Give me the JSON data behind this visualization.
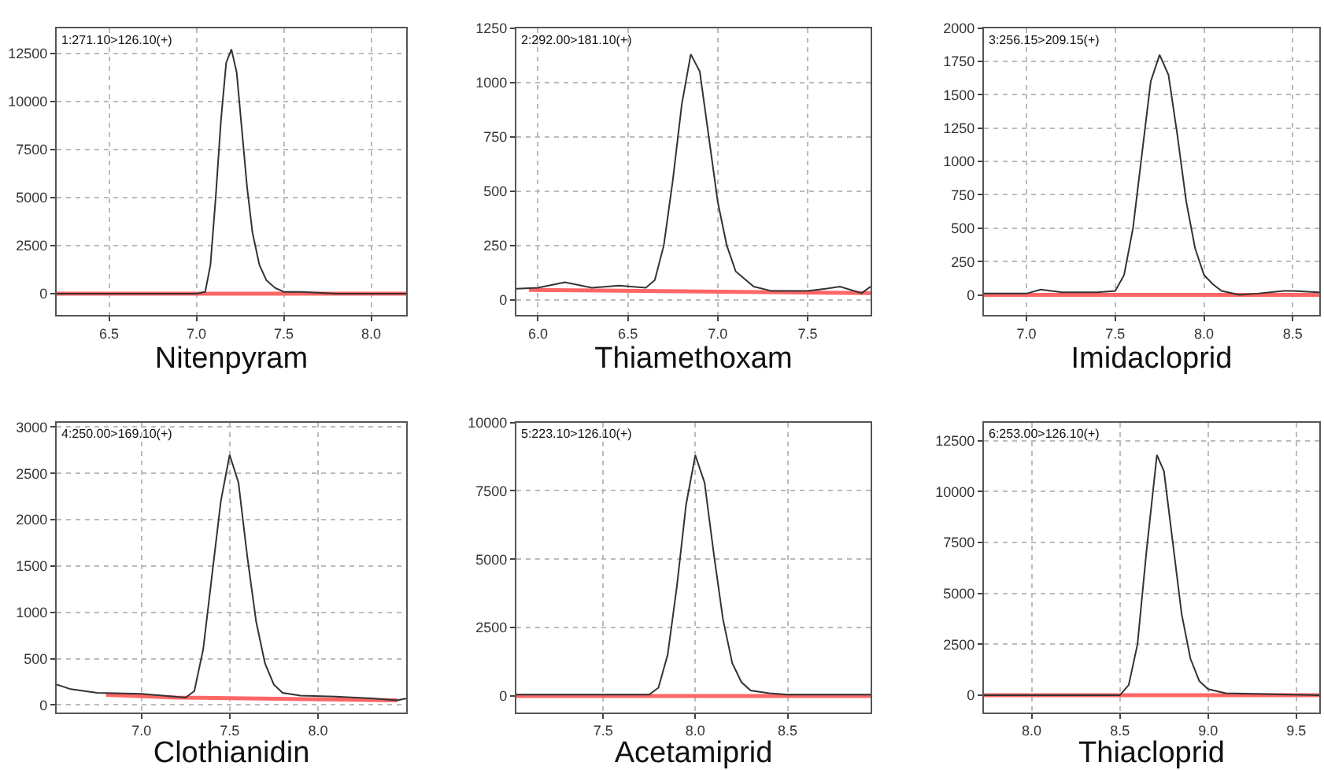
{
  "chart_data": [
    {
      "type": "line",
      "xlabel": "Nitenpyram",
      "annotations": [
        "1:271.10>126.10(+)"
      ],
      "xlim": [
        6.2,
        8.2
      ],
      "xticks": [
        6.5,
        {
          "value": 7,
          "label": "7.0"
        },
        7.5,
        {
          "value": 8,
          "label": "8.0"
        }
      ],
      "ylim": [
        -1100,
        13800
      ],
      "yticks": [
        0,
        2500,
        5000,
        7500,
        10000,
        12500
      ],
      "grid": true,
      "marker": "none",
      "line_style": "solid",
      "series": [
        {
          "color": "#ff6666",
          "x": [
            6.2,
            8.2
          ],
          "values": [
            0,
            0
          ]
        },
        {
          "color": "#333333",
          "x": [
            6.2,
            6.6,
            7.0,
            7.05,
            7.08,
            7.11,
            7.14,
            7.17,
            7.2,
            7.23,
            7.26,
            7.29,
            7.32,
            7.36,
            7.4,
            7.45,
            7.5,
            7.6,
            7.8,
            8.0,
            8.2
          ],
          "values": [
            0,
            0,
            0,
            100,
            1500,
            5000,
            9000,
            12000,
            12700,
            11500,
            8500,
            5500,
            3200,
            1500,
            700,
            300,
            100,
            100,
            0,
            0,
            0
          ]
        }
      ]
    },
    {
      "type": "line",
      "xlabel": "Thiamethoxam",
      "annotations": [
        "2:292.00>181.10(+)"
      ],
      "xlim": [
        5.88,
        7.85
      ],
      "xticks": [
        {
          "value": 6,
          "label": "6.0"
        },
        6.5,
        {
          "value": 7,
          "label": "7.0"
        },
        7.5
      ],
      "ylim": [
        -70,
        1250
      ],
      "yticks": [
        0,
        250,
        500,
        750,
        1000,
        1250
      ],
      "grid": true,
      "marker": "none",
      "line_style": "solid",
      "series": [
        {
          "color": "#ff6666",
          "x": [
            5.95,
            7.85
          ],
          "values": [
            45,
            30
          ]
        },
        {
          "color": "#333333",
          "x": [
            5.88,
            6.0,
            6.15,
            6.3,
            6.45,
            6.6,
            6.65,
            6.7,
            6.75,
            6.8,
            6.85,
            6.9,
            6.95,
            7.0,
            7.05,
            7.1,
            7.2,
            7.3,
            7.5,
            7.6,
            7.68,
            7.8,
            7.85
          ],
          "values": [
            50,
            55,
            80,
            55,
            65,
            55,
            90,
            250,
            550,
            900,
            1130,
            1050,
            750,
            450,
            250,
            130,
            60,
            40,
            40,
            50,
            60,
            30,
            60
          ]
        }
      ]
    },
    {
      "type": "line",
      "xlabel": "Imidacloprid",
      "annotations": [
        "3:256.15>209.15(+)"
      ],
      "xlim": [
        6.76,
        8.65
      ],
      "xticks": [
        {
          "value": 7,
          "label": "7.0"
        },
        7.5,
        {
          "value": 8,
          "label": "8.0"
        },
        8.5
      ],
      "ylim": [
        -150,
        2000
      ],
      "yticks": [
        0,
        250,
        500,
        750,
        1000,
        1250,
        1500,
        1750,
        2000
      ],
      "grid": true,
      "marker": "none",
      "line_style": "solid",
      "series": [
        {
          "color": "#ff6666",
          "x": [
            6.76,
            8.65
          ],
          "values": [
            0,
            0
          ]
        },
        {
          "color": "#333333",
          "x": [
            6.76,
            7.0,
            7.08,
            7.2,
            7.4,
            7.5,
            7.55,
            7.6,
            7.65,
            7.7,
            7.75,
            7.8,
            7.85,
            7.9,
            7.95,
            8.0,
            8.05,
            8.1,
            8.2,
            8.3,
            8.45,
            8.5,
            8.65
          ],
          "values": [
            10,
            10,
            40,
            20,
            20,
            30,
            150,
            500,
            1050,
            1600,
            1800,
            1650,
            1200,
            700,
            350,
            150,
            80,
            30,
            0,
            10,
            30,
            30,
            20
          ]
        }
      ]
    },
    {
      "type": "line",
      "xlabel": "Clothianidin",
      "annotations": [
        "4:250.00>169.10(+)"
      ],
      "xlim": [
        6.52,
        8.5
      ],
      "xticks": [
        {
          "value": 7,
          "label": "7.0"
        },
        7.5,
        {
          "value": 8,
          "label": "8.0"
        }
      ],
      "ylim": [
        -80,
        3050
      ],
      "yticks": [
        0,
        500,
        1000,
        1500,
        2000,
        2500,
        3000
      ],
      "grid": true,
      "marker": "none",
      "line_style": "solid",
      "series": [
        {
          "color": "#ff6666",
          "x": [
            6.8,
            7.2,
            8.45
          ],
          "values": [
            110,
            80,
            50
          ]
        },
        {
          "color": "#333333",
          "x": [
            6.52,
            6.6,
            6.75,
            7.0,
            7.25,
            7.3,
            7.35,
            7.4,
            7.45,
            7.5,
            7.55,
            7.6,
            7.65,
            7.7,
            7.75,
            7.8,
            7.9,
            8.1,
            8.3,
            8.45,
            8.5
          ],
          "values": [
            220,
            170,
            130,
            120,
            80,
            150,
            600,
            1400,
            2200,
            2700,
            2400,
            1600,
            900,
            450,
            220,
            130,
            100,
            90,
            70,
            50,
            70
          ]
        }
      ]
    },
    {
      "type": "line",
      "xlabel": "Acetamiprid",
      "annotations": [
        "5:223.10>126.10(+)"
      ],
      "xlim": [
        7.03,
        8.95
      ],
      "xticks": [
        7.5,
        {
          "value": 8,
          "label": "8.0"
        },
        8.5
      ],
      "ylim": [
        -600,
        10000
      ],
      "yticks": [
        0,
        2500,
        5000,
        7500,
        10000
      ],
      "grid": true,
      "marker": "none",
      "line_style": "solid",
      "series": [
        {
          "color": "#ff6666",
          "x": [
            7.03,
            8.95
          ],
          "values": [
            0,
            0
          ]
        },
        {
          "color": "#333333",
          "x": [
            7.03,
            7.5,
            7.75,
            7.8,
            7.85,
            7.9,
            7.95,
            8.0,
            8.05,
            8.1,
            8.15,
            8.2,
            8.25,
            8.3,
            8.4,
            8.5,
            8.6,
            8.95
          ],
          "values": [
            50,
            50,
            50,
            300,
            1500,
            4000,
            7000,
            8800,
            7800,
            5200,
            2800,
            1200,
            500,
            200,
            100,
            50,
            50,
            50
          ]
        }
      ]
    },
    {
      "type": "line",
      "xlabel": "Thiacloprid",
      "annotations": [
        "6:253.00>126.10(+)"
      ],
      "xlim": [
        7.73,
        9.63
      ],
      "xticks": [
        {
          "value": 8,
          "label": "8.0"
        },
        8.5,
        {
          "value": 9,
          "label": "9.0"
        },
        9.5
      ],
      "ylim": [
        -840,
        13400
      ],
      "yticks": [
        0,
        2500,
        5000,
        7500,
        10000,
        12500
      ],
      "grid": true,
      "marker": "none",
      "line_style": "solid",
      "series": [
        {
          "color": "#ff6666",
          "x": [
            7.73,
            9.63
          ],
          "values": [
            0,
            0
          ]
        },
        {
          "color": "#333333",
          "x": [
            7.73,
            8.2,
            8.5,
            8.55,
            8.6,
            8.65,
            8.71,
            8.75,
            8.8,
            8.85,
            8.9,
            8.95,
            9.0,
            9.1,
            9.63
          ],
          "values": [
            0,
            0,
            0,
            500,
            2500,
            7000,
            11800,
            11000,
            7500,
            4000,
            1800,
            700,
            300,
            100,
            0
          ]
        }
      ]
    }
  ]
}
